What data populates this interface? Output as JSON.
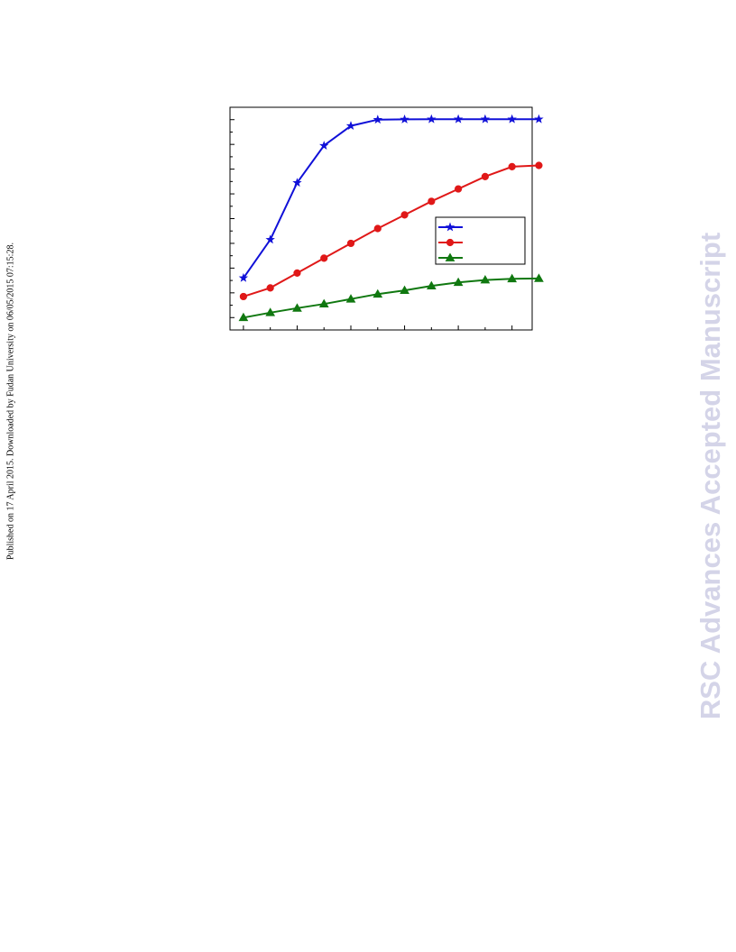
{
  "side_note": "Published on 17 April 2015. Downloaded by Fudan University on 06/05/2015 07:15:28.",
  "watermark": {
    "text": "RSC Advances Accepted Manuscript",
    "color": "#d4d4e8"
  },
  "chart_data": {
    "type": "line",
    "title": "",
    "xlabel": "",
    "ylabel": "",
    "xlim": [
      0.5,
      11.75
    ],
    "ylim": [
      0,
      9
    ],
    "x_major_ticks": [
      1,
      3,
      5,
      7,
      9,
      11
    ],
    "x_minor_ticks": [
      2,
      4,
      6,
      8,
      10
    ],
    "y_major_ticks": [
      0.5,
      1.5,
      2.5,
      3.5,
      4.5,
      5.5,
      6.5,
      7.5,
      8.5
    ],
    "y_minor_ticks": [
      1,
      2,
      3,
      4,
      5,
      6,
      7,
      8
    ],
    "grid": false,
    "legend_position": "center-right",
    "series": [
      {
        "color": "#1010d8",
        "marker": "star",
        "x": [
          1,
          2,
          3,
          4,
          5,
          6,
          7,
          8,
          9,
          10,
          11,
          12
        ],
        "y": [
          2.1,
          3.65,
          5.95,
          7.45,
          8.25,
          8.5,
          8.51,
          8.52,
          8.52,
          8.52,
          8.52,
          8.52
        ]
      },
      {
        "color": "#e01818",
        "marker": "circle",
        "x": [
          1,
          2,
          3,
          4,
          5,
          6,
          7,
          8,
          9,
          10,
          11,
          12
        ],
        "y": [
          1.35,
          1.7,
          2.3,
          2.9,
          3.5,
          4.1,
          4.65,
          5.2,
          5.7,
          6.2,
          6.6,
          6.65
        ]
      },
      {
        "color": "#107810",
        "marker": "triangle",
        "x": [
          1,
          2,
          3,
          4,
          5,
          6,
          7,
          8,
          9,
          10,
          11,
          12
        ],
        "y": [
          0.5,
          0.7,
          0.88,
          1.05,
          1.25,
          1.45,
          1.6,
          1.78,
          1.92,
          2.02,
          2.07,
          2.08
        ]
      }
    ]
  }
}
